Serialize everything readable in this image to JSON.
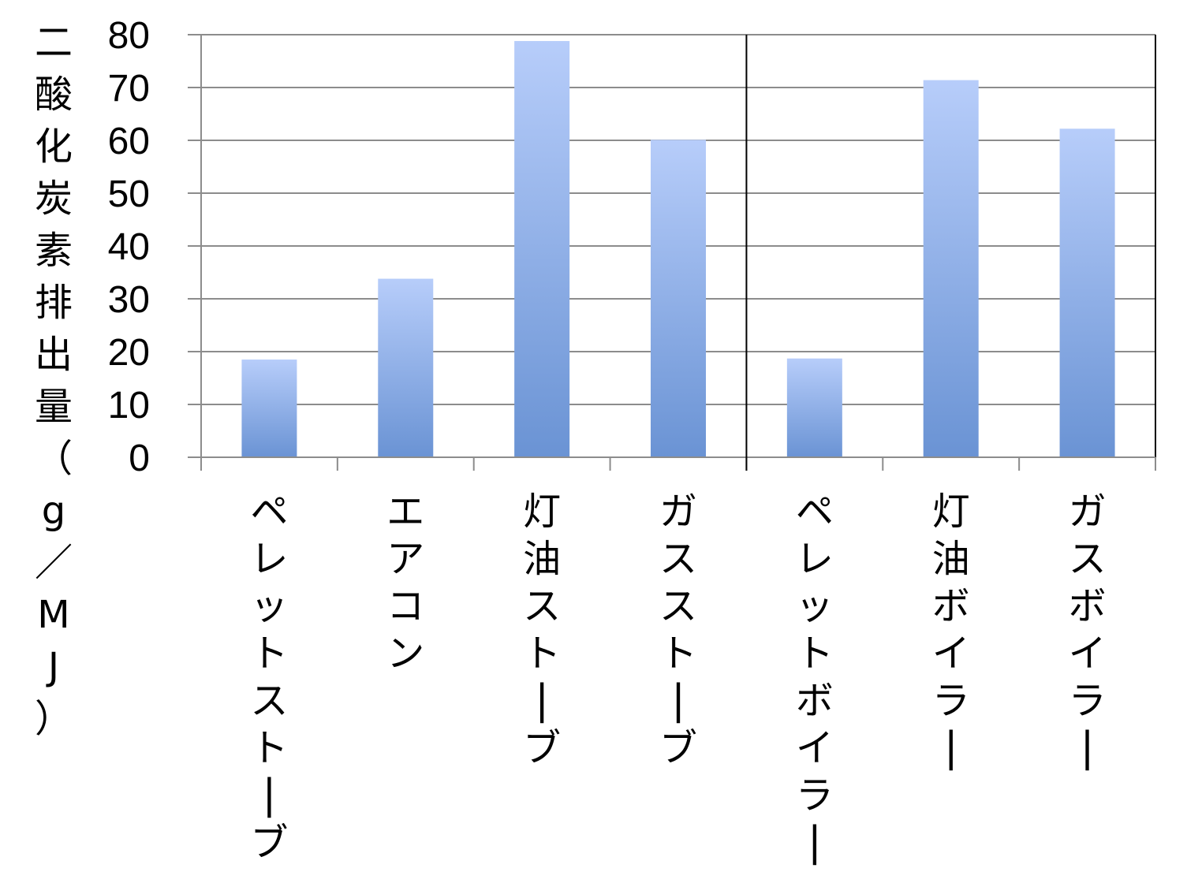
{
  "chart_data": {
    "type": "bar",
    "categories": [
      "ペレットストーブ",
      "エアコン",
      "灯油ストーブ",
      "ガスストーブ",
      "ペレットボイラー",
      "灯油ボイラー",
      "ガスボイラー"
    ],
    "values": [
      18.5,
      33.8,
      78.8,
      60.1,
      18.7,
      71.4,
      62.2
    ],
    "ylabel": "二酸化炭素排出量（g／MJ）",
    "ylim": [
      0,
      80
    ],
    "yticks": [
      0,
      10,
      20,
      30,
      40,
      50,
      60,
      70,
      80
    ],
    "grid": true,
    "group_separator_after_index": 3,
    "colors": {
      "bar_top": "#b7cdfa",
      "bar_bottom": "#6a93d4",
      "grid": "#8c8c8c",
      "axis": "#000000"
    }
  }
}
